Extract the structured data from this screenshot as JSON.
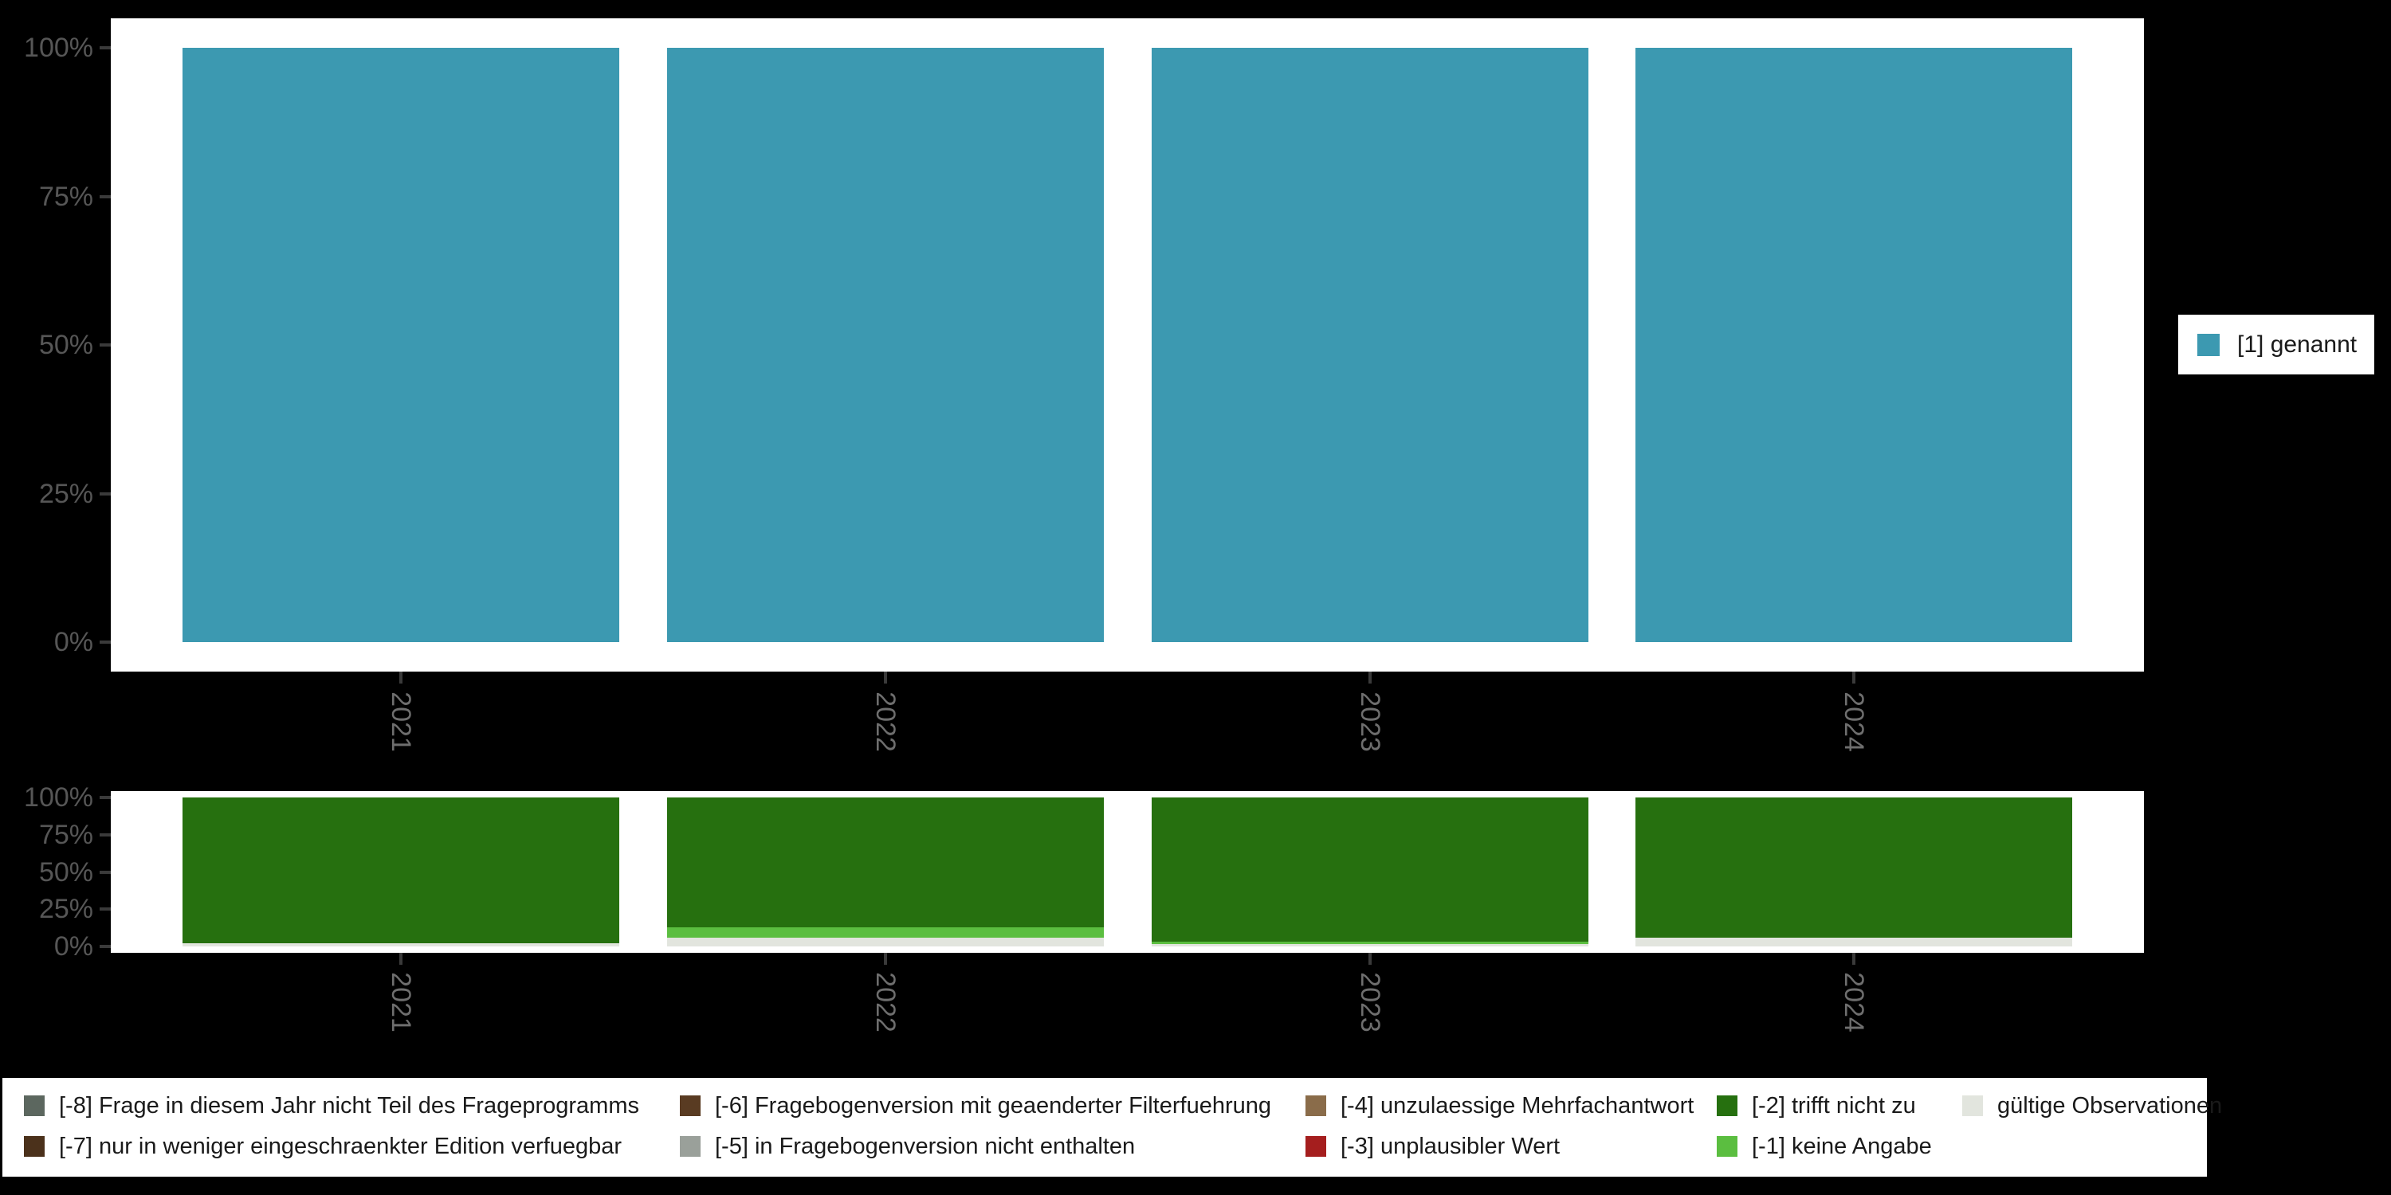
{
  "right_legend": {
    "items": [
      {
        "label": "[1] genannt",
        "color": "#3c99b1"
      }
    ]
  },
  "bottom_legend": {
    "columns": [
      [
        {
          "label": "[-8] Frage in diesem Jahr nicht Teil des Frageprogramms",
          "color": "#5c675f"
        },
        {
          "label": "[-7] nur in weniger eingeschraenkter Edition verfuegbar",
          "color": "#4b311b"
        }
      ],
      [
        {
          "label": "[-6] Fragebogenversion mit geaenderter Filterfuehrung",
          "color": "#593b22"
        },
        {
          "label": "[-5] in Fragebogenversion nicht enthalten",
          "color": "#9aa09a"
        }
      ],
      [
        {
          "label": "[-4] unzulaessige Mehrfachantwort",
          "color": "#8a6c4a"
        },
        {
          "label": "[-3] unplausibler Wert",
          "color": "#a51e1e"
        }
      ],
      [
        {
          "label": "[-2] trifft nicht zu",
          "color": "#26700f"
        },
        {
          "label": "[-1] keine Angabe",
          "color": "#5bbe40"
        }
      ],
      [
        {
          "label": "gültige Observationen",
          "color": "#e2e5de"
        }
      ]
    ]
  },
  "chart_data": [
    {
      "type": "bar",
      "stacked": true,
      "orientation": "vertical",
      "title": "",
      "xlabel": "",
      "ylabel": "",
      "categories": [
        "2021",
        "2022",
        "2023",
        "2024"
      ],
      "series": [
        {
          "name": "[1] genannt",
          "color": "#3c99b1",
          "values": [
            100,
            100,
            100,
            100
          ]
        }
      ],
      "ylim": [
        0,
        100
      ],
      "y_tick_labels": [
        "0%",
        "25%",
        "50%",
        "75%",
        "100%"
      ],
      "grid": false,
      "legend_position": "right"
    },
    {
      "type": "bar",
      "stacked": true,
      "orientation": "vertical",
      "title": "",
      "xlabel": "",
      "ylabel": "",
      "categories": [
        "2021",
        "2022",
        "2023",
        "2024"
      ],
      "series": [
        {
          "name": "gültige Observationen",
          "color": "#e2e5de",
          "values": [
            2,
            6,
            1.5,
            6
          ]
        },
        {
          "name": "[-1] keine Angabe",
          "color": "#5bbe40",
          "values": [
            0,
            7,
            1.5,
            0
          ]
        },
        {
          "name": "[-2] trifft nicht zu",
          "color": "#26700f",
          "values": [
            98,
            87,
            97,
            94
          ]
        }
      ],
      "ylim": [
        0,
        100
      ],
      "y_tick_labels": [
        "0%",
        "25%",
        "50%",
        "75%",
        "100%"
      ],
      "grid": false,
      "legend_position": "bottom"
    }
  ]
}
